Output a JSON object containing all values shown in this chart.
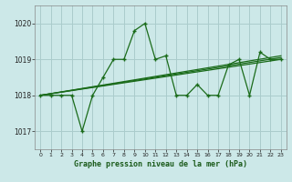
{
  "bg_color": "#cce8e8",
  "grid_color": "#aacccc",
  "line_color": "#1a6b1a",
  "marker_color": "#1a6b1a",
  "title": "Graphe pression niveau de la mer (hPa)",
  "xlim": [
    -0.5,
    23.5
  ],
  "ylim": [
    1016.5,
    1020.5
  ],
  "yticks": [
    1017,
    1018,
    1019,
    1020
  ],
  "xticks": [
    0,
    1,
    2,
    3,
    4,
    5,
    6,
    7,
    8,
    9,
    10,
    11,
    12,
    13,
    14,
    15,
    16,
    17,
    18,
    19,
    20,
    21,
    22,
    23
  ],
  "main_x": [
    0,
    1,
    2,
    3,
    4,
    5,
    6,
    7,
    8,
    9,
    10,
    11,
    12,
    13,
    14,
    15,
    16,
    17,
    18,
    19,
    20,
    21,
    22,
    23
  ],
  "main_y": [
    1018.0,
    1018.0,
    1018.0,
    1018.0,
    1017.0,
    1018.0,
    1018.5,
    1019.0,
    1019.0,
    1019.8,
    1020.0,
    1019.0,
    1019.1,
    1018.0,
    1018.0,
    1018.3,
    1018.0,
    1018.0,
    1018.85,
    1019.0,
    1018.0,
    1019.2,
    1019.0,
    1019.0
  ],
  "trend1_x": [
    0,
    23
  ],
  "trend1_y": [
    1018.0,
    1019.0
  ],
  "trend2_x": [
    0,
    23
  ],
  "trend2_y": [
    1018.0,
    1019.05
  ],
  "trend3_x": [
    0,
    23
  ],
  "trend3_y": [
    1018.0,
    1019.1
  ]
}
